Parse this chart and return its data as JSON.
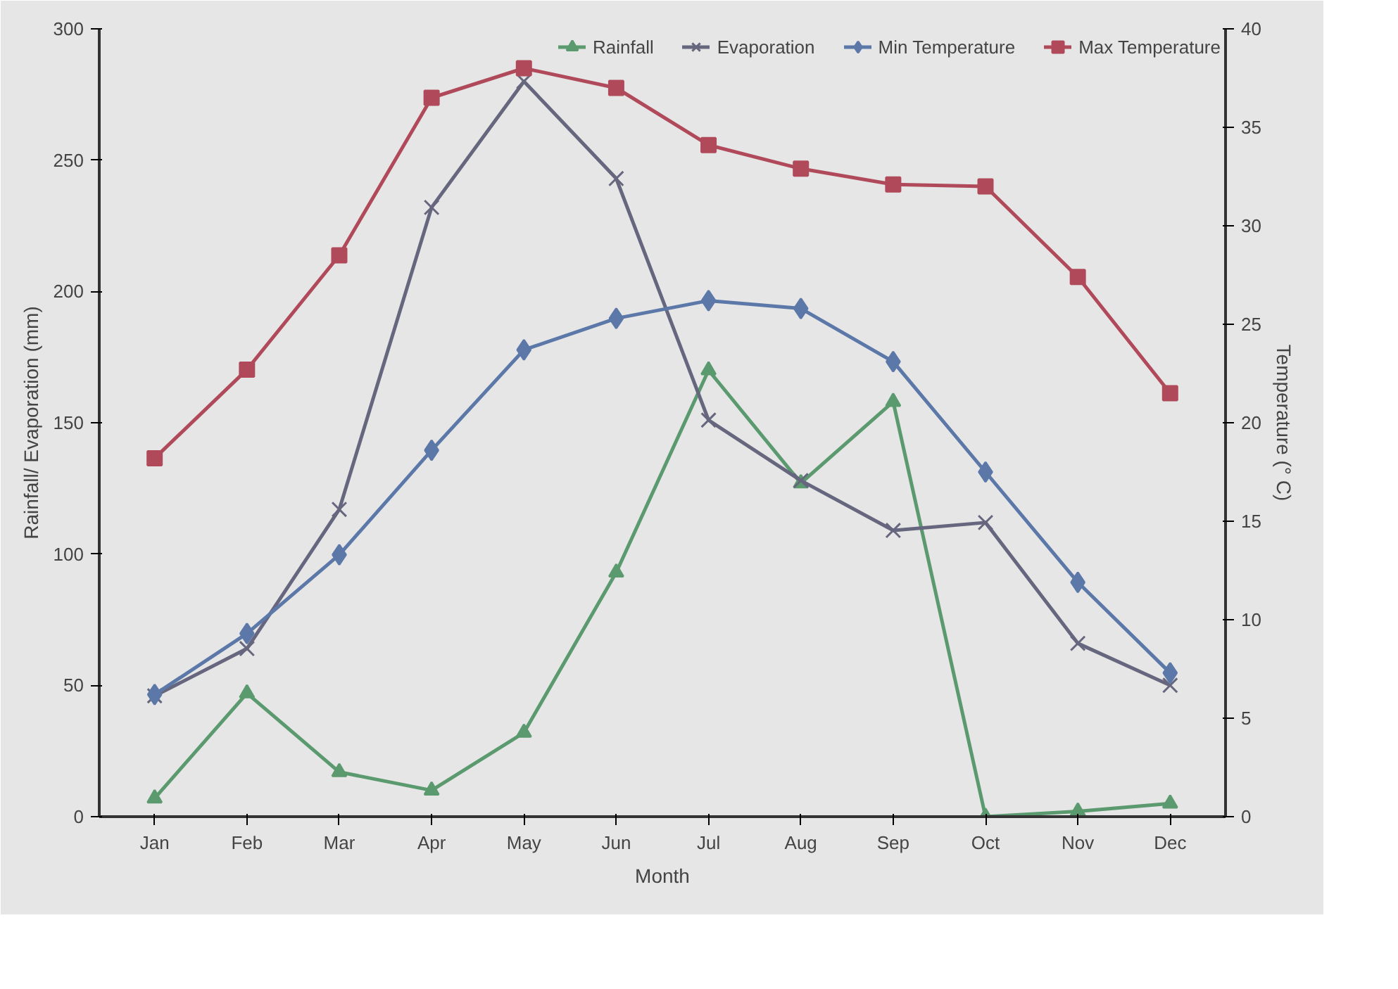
{
  "chart_data": {
    "type": "line",
    "xlabel": "Month",
    "ylabel": "Rainfall/ Evaporation (mm)",
    "y2label": "Temperature (° C)",
    "categories": [
      "Jan",
      "Feb",
      "Mar",
      "Apr",
      "May",
      "Jun",
      "Jul",
      "Aug",
      "Sep",
      "Oct",
      "Nov",
      "Dec"
    ],
    "series": [
      {
        "name": "Rainfall",
        "color": "#5a9a6e",
        "marker": "triangle",
        "values": [
          7,
          47,
          17,
          10,
          32,
          93,
          170,
          127,
          158,
          0,
          2,
          5
        ]
      },
      {
        "name": "Evaporation",
        "color": "#66667e",
        "marker": "cross",
        "values": [
          46,
          64,
          117,
          232,
          280,
          243,
          151,
          128,
          109,
          112,
          66,
          50
        ]
      },
      {
        "name": "Min Temperature",
        "color": "#5b78a8",
        "marker": "diamond",
        "axis": "y2",
        "values": [
          6.2,
          9.3,
          13.3,
          18.6,
          23.7,
          25.3,
          26.2,
          25.8,
          23.1,
          17.5,
          11.9,
          7.3
        ]
      },
      {
        "name": "Max Temperature",
        "color": "#b04a5a",
        "marker": "square",
        "axis": "y2",
        "values": [
          18.2,
          22.7,
          28.5,
          36.5,
          38.0,
          37.0,
          34.1,
          32.9,
          32.1,
          32.0,
          27.4,
          21.5
        ]
      }
    ],
    "ylim": [
      0,
      300
    ],
    "yticks": [
      0,
      50,
      100,
      150,
      200,
      250,
      300
    ],
    "y2lim": [
      0,
      40
    ],
    "y2ticks": [
      0,
      5,
      10,
      15,
      20,
      25,
      30,
      35,
      40
    ],
    "grid": false,
    "legend": "top",
    "line_style": "solid"
  }
}
